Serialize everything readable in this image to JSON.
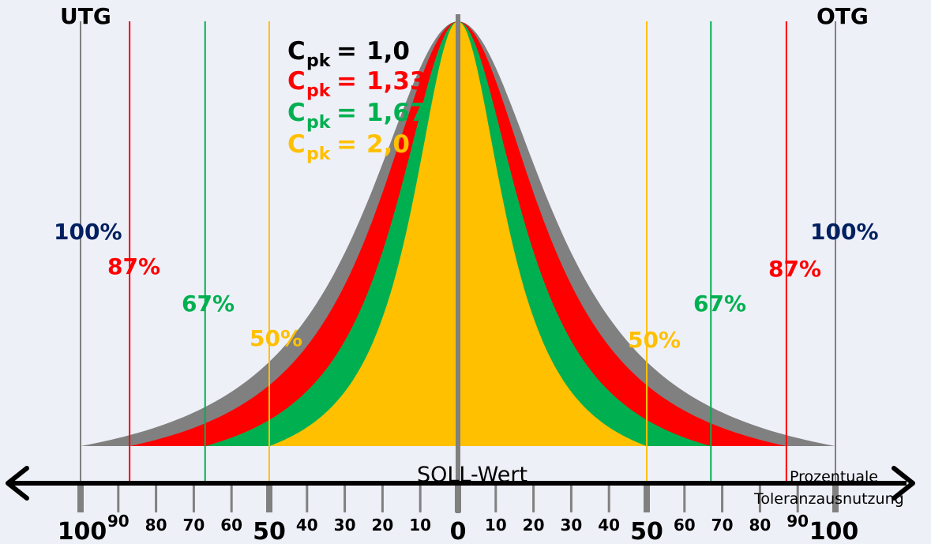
{
  "labels": {
    "utg": "UTG",
    "otg": "OTG",
    "soll": "SOLL-Wert",
    "axis_title_1": "Prozentuale",
    "axis_title_2": "Toleranzausnutzung"
  },
  "legend": [
    {
      "symbol": "C",
      "sub": "pk",
      "eq": "=",
      "value": "1,0",
      "color": "#000000"
    },
    {
      "symbol": "C",
      "sub": "pk",
      "eq": "=",
      "value": "1,33",
      "color": "#ff0000"
    },
    {
      "symbol": "C",
      "sub": "pk",
      "eq": "=",
      "value": "1,67",
      "color": "#00b050"
    },
    {
      "symbol": "C",
      "sub": "pk",
      "eq": "=",
      "value": "2,0",
      "color": "#ffc000"
    }
  ],
  "limits": [
    {
      "cpk": "1,0",
      "usage_percent": 100,
      "label": "100%",
      "line_color": "#808080",
      "fill_color": "#808080",
      "label_color": "#002060"
    },
    {
      "cpk": "1,33",
      "usage_percent": 87,
      "label": "87%",
      "line_color": "#ff0000",
      "fill_color": "#ff0000",
      "label_color": "#ff0000"
    },
    {
      "cpk": "1,67",
      "usage_percent": 67,
      "label": "67%",
      "line_color": "#00b050",
      "fill_color": "#00b050",
      "label_color": "#00b050"
    },
    {
      "cpk": "2,0",
      "usage_percent": 50,
      "label": "50%",
      "line_color": "#ffc000",
      "fill_color": "#ffc000",
      "label_color": "#ffc000"
    }
  ],
  "axis": {
    "ticks_left": [
      "100",
      "90",
      "80",
      "70",
      "60",
      "50",
      "40",
      "30",
      "20",
      "10"
    ],
    "center": "0",
    "ticks_right": [
      "10",
      "20",
      "30",
      "40",
      "50",
      "60",
      "70",
      "80",
      "90",
      "100"
    ],
    "major": [
      "100",
      "50",
      "0"
    ]
  }
}
